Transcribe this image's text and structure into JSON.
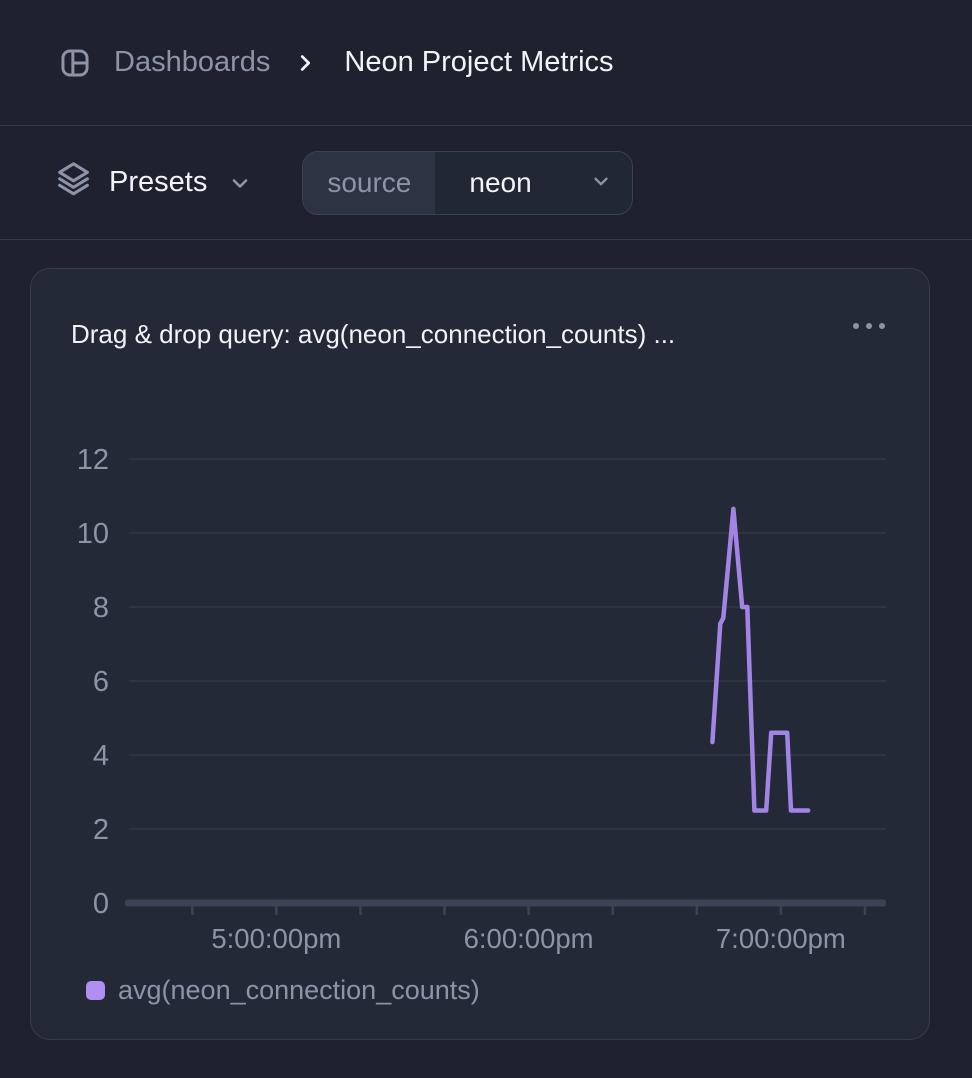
{
  "colors": {
    "page_bg": "#1f222e",
    "panel_bg": "#242937",
    "panel_border": "#363c4c",
    "divider": "#343a4a",
    "grid": "#323846",
    "axis": "#3d4354",
    "text_primary": "#f2f3f6",
    "text_muted": "#8d94a8",
    "accent_purple": "#a184e4",
    "legend_swatch": "#b18ef2"
  },
  "breadcrumb": {
    "dashboards_label": "Dashboards",
    "title": "Neon Project Metrics"
  },
  "toolbar": {
    "presets_label": "Presets",
    "filter_key": "source",
    "filter_value": "neon"
  },
  "panel": {
    "title": "Drag & drop query: avg(neon_connection_counts) ...",
    "legend": [
      {
        "label": "avg(neon_connection_counts)",
        "color": "#b18ef2"
      }
    ]
  },
  "chart_data": {
    "type": "line",
    "title": "Drag & drop query: avg(neon_connection_counts) ...",
    "x_domain": [
      "16:24",
      "19:25"
    ],
    "x_tick_start": "16:40",
    "x_tick_interval_min": 20,
    "x_labels": [
      {
        "t": "17:00",
        "label": "5:00:00pm"
      },
      {
        "t": "18:00",
        "label": "6:00:00pm"
      },
      {
        "t": "19:00",
        "label": "7:00:00pm"
      }
    ],
    "ylim": [
      0,
      12
    ],
    "y_ticks": [
      0,
      2,
      4,
      6,
      8,
      10,
      12
    ],
    "grid": "horizontal",
    "legend_position": "bottom-left",
    "series": [
      {
        "name": "avg(neon_connection_counts)",
        "color": "#a184e4",
        "points": [
          [
            "18:43.7",
            4.35
          ],
          [
            "18:45.6",
            7.55
          ],
          [
            "18:46.3",
            7.7
          ],
          [
            "18:48.7",
            10.65
          ],
          [
            "18:50.8",
            8.0
          ],
          [
            "18:52.0",
            8.0
          ],
          [
            "18:53.7",
            2.5
          ],
          [
            "18:56.5",
            2.5
          ],
          [
            "18:57.7",
            4.6
          ],
          [
            "19:01.5",
            4.6
          ],
          [
            "19:02.4",
            2.5
          ],
          [
            "19:06.5",
            2.5
          ]
        ]
      }
    ]
  }
}
